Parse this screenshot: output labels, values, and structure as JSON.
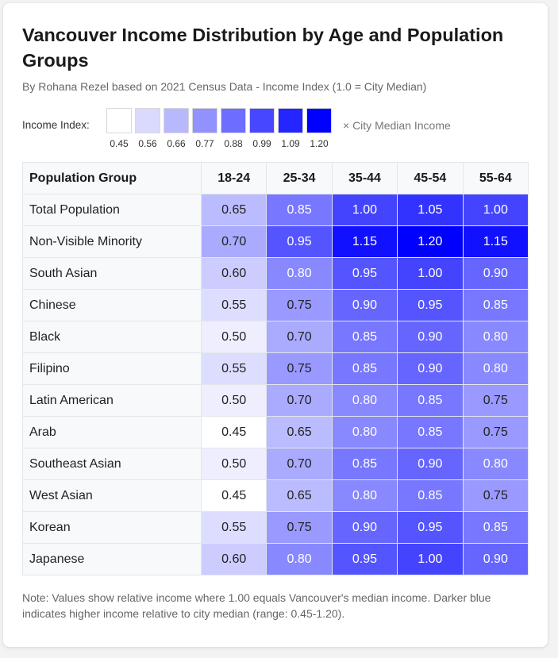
{
  "title": "Vancouver Income Distribution by Age and Population Groups",
  "subtitle": "By Rohana Rezel based on 2021 Census Data - Income Index (1.0 = City Median)",
  "legend": {
    "label": "Income Index:",
    "values": [
      "0.45",
      "0.56",
      "0.66",
      "0.77",
      "0.88",
      "0.99",
      "1.09",
      "1.20"
    ],
    "suffix": "× City Median Income"
  },
  "colors": {
    "low": "#ffffff",
    "high": "#0000ff",
    "text_light": "#ffffff",
    "text_dark": "#222222"
  },
  "note": "Note: Values show relative income where 1.00 equals Vancouver's median income. Darker blue indicates higher income relative to city median (range: 0.45-1.20).",
  "chart_data": {
    "type": "heatmap",
    "range": [
      0.45,
      1.2
    ],
    "row_header": "Population Group",
    "columns": [
      "18-24",
      "25-34",
      "35-44",
      "45-54",
      "55-64"
    ],
    "rows": [
      {
        "name": "Total Population",
        "values": [
          0.65,
          0.85,
          1.0,
          1.05,
          1.0
        ]
      },
      {
        "name": "Non-Visible Minority",
        "values": [
          0.7,
          0.95,
          1.15,
          1.2,
          1.15
        ]
      },
      {
        "name": "South Asian",
        "values": [
          0.6,
          0.8,
          0.95,
          1.0,
          0.9
        ]
      },
      {
        "name": "Chinese",
        "values": [
          0.55,
          0.75,
          0.9,
          0.95,
          0.85
        ]
      },
      {
        "name": "Black",
        "values": [
          0.5,
          0.7,
          0.85,
          0.9,
          0.8
        ]
      },
      {
        "name": "Filipino",
        "values": [
          0.55,
          0.75,
          0.85,
          0.9,
          0.8
        ]
      },
      {
        "name": "Latin American",
        "values": [
          0.5,
          0.7,
          0.8,
          0.85,
          0.75
        ]
      },
      {
        "name": "Arab",
        "values": [
          0.45,
          0.65,
          0.8,
          0.85,
          0.75
        ]
      },
      {
        "name": "Southeast Asian",
        "values": [
          0.5,
          0.7,
          0.85,
          0.9,
          0.8
        ]
      },
      {
        "name": "West Asian",
        "values": [
          0.45,
          0.65,
          0.8,
          0.85,
          0.75
        ]
      },
      {
        "name": "Korean",
        "values": [
          0.55,
          0.75,
          0.9,
          0.95,
          0.85
        ]
      },
      {
        "name": "Japanese",
        "values": [
          0.6,
          0.8,
          0.95,
          1.0,
          0.9
        ]
      }
    ]
  }
}
